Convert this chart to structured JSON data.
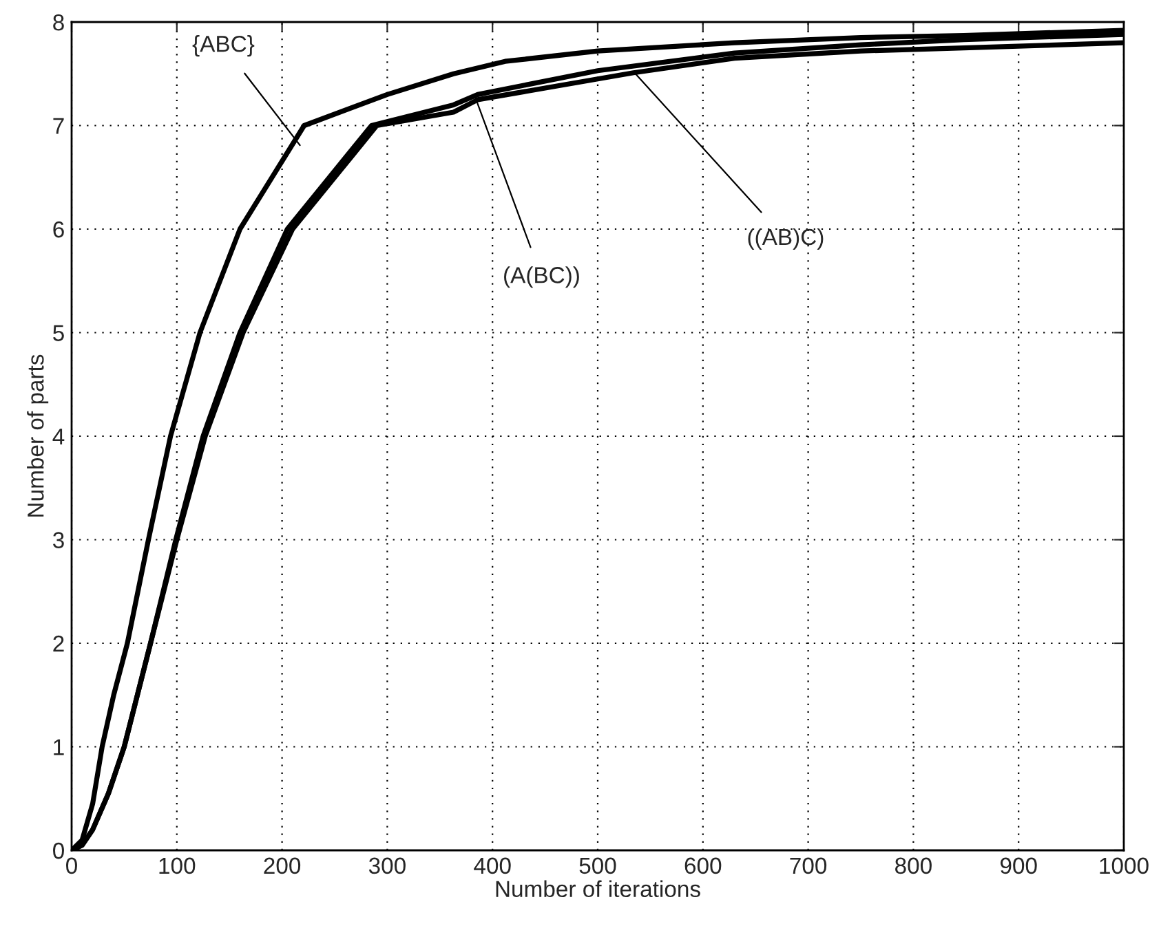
{
  "chart_data": {
    "type": "line",
    "xlabel": "Number of iterations",
    "ylabel": "Number of parts",
    "xlim": [
      0,
      1000
    ],
    "xticks": [
      0,
      100,
      200,
      300,
      400,
      500,
      600,
      700,
      800,
      900,
      1000
    ],
    "ylim": [
      0,
      8
    ],
    "yticks": [
      0,
      1,
      2,
      3,
      4,
      5,
      6,
      7,
      8
    ],
    "grid": true,
    "line_style": "solid",
    "marker": "none",
    "series": [
      {
        "color": "#000000",
        "x": [
          0,
          10,
          20,
          29,
          40,
          53,
          73,
          94,
          122,
          160,
          221,
          300,
          363,
          412,
          500,
          630,
          750,
          848,
          1000
        ],
        "values": [
          0,
          0.1,
          0.45,
          1,
          1.5,
          2,
          3,
          4,
          5,
          6,
          7,
          7.3,
          7.5,
          7.62,
          7.72,
          7.8,
          7.85,
          7.87,
          7.92
        ]
      },
      {
        "color": "#000000",
        "x": [
          0,
          10,
          20,
          35,
          50,
          75,
          99,
          125,
          160,
          205,
          285,
          363,
          386,
          500,
          630,
          750,
          848,
          1000
        ],
        "values": [
          0,
          0.05,
          0.2,
          0.55,
          1,
          2,
          3,
          4,
          5,
          6,
          7,
          7.2,
          7.3,
          7.53,
          7.7,
          7.78,
          7.83,
          7.88
        ]
      },
      {
        "color": "#000000",
        "x": [
          0,
          10,
          20,
          35,
          50,
          75,
          100,
          127,
          163,
          210,
          290,
          363,
          386,
          534,
          630,
          750,
          848,
          1000
        ],
        "values": [
          0,
          0.05,
          0.2,
          0.55,
          1,
          2,
          3,
          4,
          5,
          6,
          7,
          7.13,
          7.25,
          7.51,
          7.65,
          7.72,
          7.75,
          7.8
        ]
      }
    ],
    "annotations": [
      {
        "text": "{ABC}",
        "x": 217,
        "y": 6.81
      },
      {
        "text": "(A(BC))",
        "x": 383,
        "y": 7.29
      },
      {
        "text": "((AB)C)",
        "x": 535,
        "y": 7.51
      }
    ]
  }
}
